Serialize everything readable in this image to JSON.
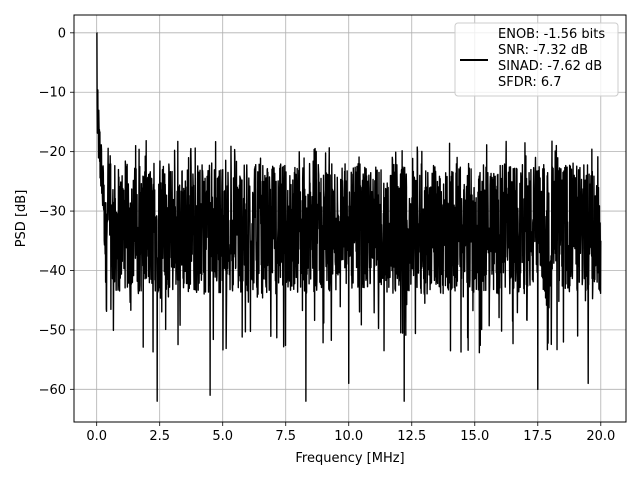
{
  "chart_data": {
    "type": "line",
    "title": "",
    "xlabel": "Frequency [MHz]",
    "ylabel": "PSD [dB]",
    "xlim": [
      -0.9,
      21.0
    ],
    "ylim": [
      -65.5,
      3.0
    ],
    "xticks": [
      0.0,
      2.5,
      5.0,
      7.5,
      10.0,
      12.5,
      15.0,
      17.5,
      20.0
    ],
    "xtick_labels": [
      "0.0",
      "2.5",
      "5.0",
      "7.5",
      "10.0",
      "12.5",
      "15.0",
      "17.5",
      "20.0"
    ],
    "yticks": [
      0,
      -10,
      -20,
      -30,
      -40,
      -50,
      -60
    ],
    "ytick_labels": [
      "0",
      "−10",
      "−20",
      "−30",
      "−40",
      "−50",
      "−60"
    ],
    "grid": true,
    "legend_placement": "top-right",
    "series": [
      {
        "color": "#000000",
        "x_range": [
          0.0,
          20.0
        ],
        "peak": {
          "x": 0.0,
          "y": 0.0
        },
        "description_points": [
          [
            0.0,
            0.0
          ],
          [
            0.05,
            -14
          ],
          [
            0.1,
            -18
          ],
          [
            0.15,
            -22
          ],
          [
            0.2,
            -27
          ],
          [
            0.3,
            -35
          ],
          [
            0.5,
            -30
          ],
          [
            1.0,
            -33
          ],
          [
            2.4,
            -62
          ],
          [
            4.5,
            -61
          ],
          [
            8.3,
            -62
          ],
          [
            10.0,
            -59
          ],
          [
            12.2,
            -62
          ],
          [
            17.5,
            -60
          ],
          [
            19.5,
            -59
          ],
          [
            20.0,
            -35
          ]
        ],
        "noise_floor": {
          "center": -33,
          "upper": -22,
          "lower": -44
        }
      }
    ],
    "legend": [
      "ENOB: -1.56 bits",
      "SNR: -7.32 dB",
      "SINAD: -7.62 dB",
      "SFDR: 6.7"
    ]
  }
}
